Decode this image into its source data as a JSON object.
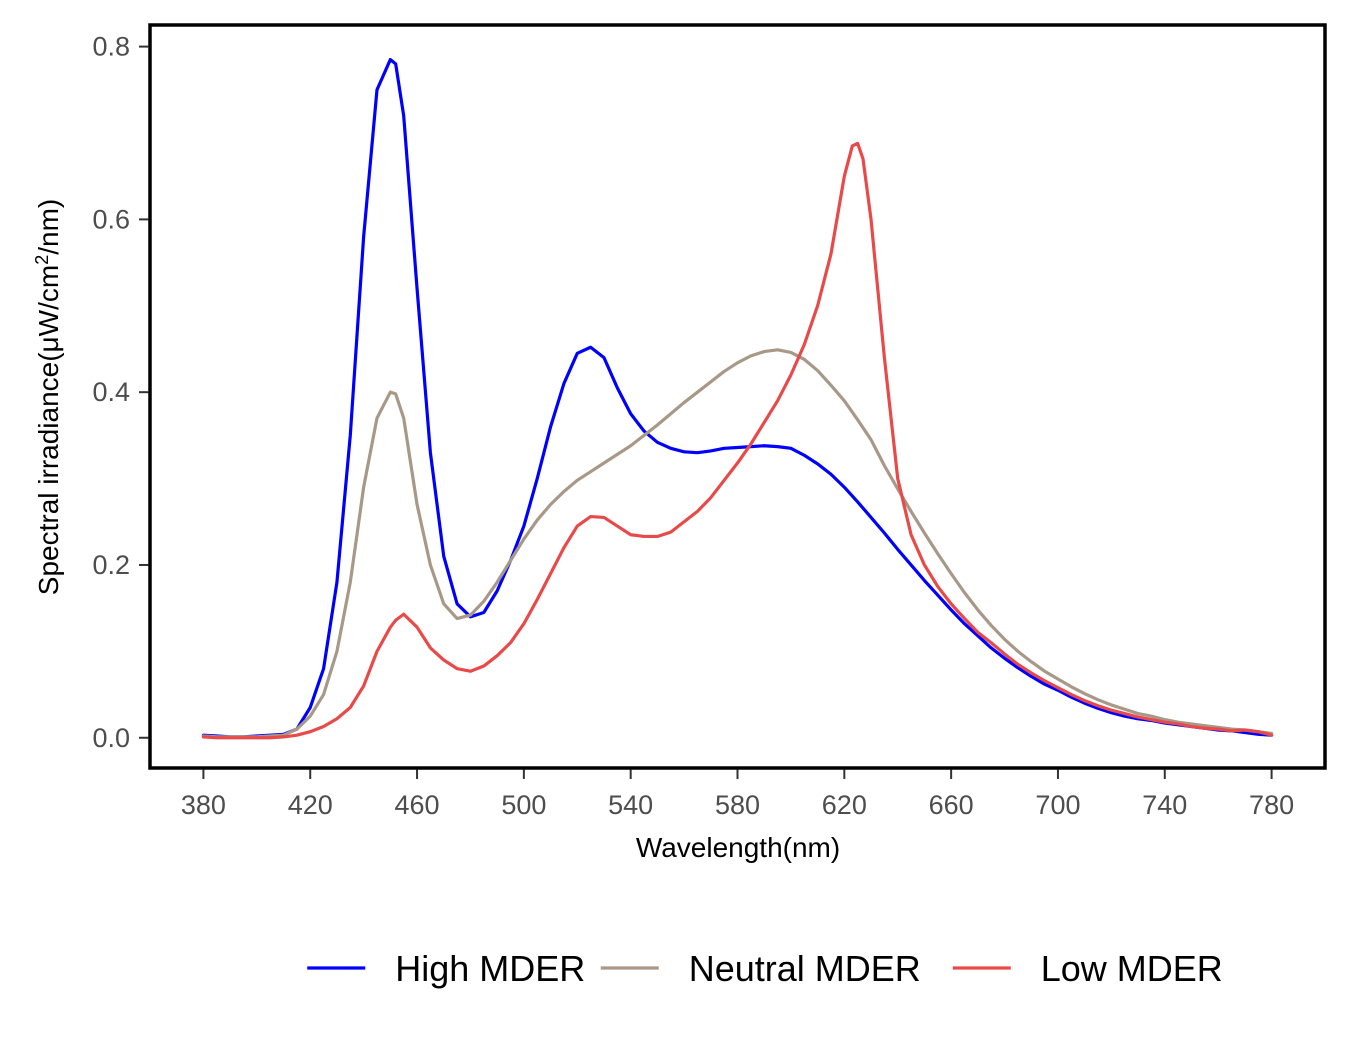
{
  "chart_data": {
    "type": "line",
    "title": "",
    "xlabel": "Wavelength(nm)",
    "ylabel": {
      "prefix": "Spectral irradiance(μW/cm",
      "superscript": "2",
      "suffix": "/nm)"
    },
    "xlim": [
      360,
      800
    ],
    "ylim": [
      -0.035,
      0.825
    ],
    "x_ticks": [
      380,
      420,
      460,
      500,
      540,
      580,
      620,
      660,
      700,
      740,
      780
    ],
    "y_ticks": [
      {
        "value": 0.0,
        "label": "0.0"
      },
      {
        "value": 0.2,
        "label": "0.2"
      },
      {
        "value": 0.4,
        "label": "0.4"
      },
      {
        "value": 0.6,
        "label": "0.6"
      },
      {
        "value": 0.8,
        "label": "0.8"
      }
    ],
    "grid": false,
    "legend_position": "bottom",
    "series": [
      {
        "name": "High MDER",
        "color": "#0000FF",
        "x": [
          380,
          385,
          390,
          395,
          400,
          405,
          410,
          415,
          420,
          425,
          430,
          435,
          440,
          445,
          450,
          452,
          455,
          460,
          465,
          470,
          475,
          480,
          485,
          490,
          495,
          500,
          505,
          510,
          515,
          520,
          525,
          530,
          535,
          540,
          545,
          550,
          555,
          560,
          565,
          570,
          575,
          580,
          585,
          590,
          595,
          600,
          605,
          610,
          615,
          620,
          625,
          630,
          635,
          640,
          645,
          650,
          655,
          660,
          665,
          670,
          675,
          680,
          685,
          690,
          695,
          700,
          705,
          710,
          715,
          720,
          725,
          730,
          735,
          740,
          745,
          750,
          755,
          760,
          765,
          770,
          775,
          780
        ],
        "values": [
          0.003,
          0.002,
          0.001,
          0.001,
          0.002,
          0.003,
          0.004,
          0.01,
          0.035,
          0.08,
          0.18,
          0.35,
          0.58,
          0.75,
          0.785,
          0.78,
          0.72,
          0.52,
          0.33,
          0.21,
          0.155,
          0.14,
          0.145,
          0.17,
          0.205,
          0.245,
          0.3,
          0.36,
          0.41,
          0.445,
          0.452,
          0.44,
          0.405,
          0.375,
          0.355,
          0.342,
          0.335,
          0.331,
          0.33,
          0.332,
          0.335,
          0.336,
          0.337,
          0.338,
          0.337,
          0.335,
          0.327,
          0.317,
          0.305,
          0.29,
          0.273,
          0.255,
          0.237,
          0.218,
          0.2,
          0.182,
          0.165,
          0.148,
          0.132,
          0.118,
          0.104,
          0.092,
          0.081,
          0.071,
          0.062,
          0.055,
          0.047,
          0.04,
          0.034,
          0.029,
          0.025,
          0.022,
          0.02,
          0.017,
          0.015,
          0.013,
          0.011,
          0.009,
          0.008,
          0.006,
          0.004,
          0.003
        ]
      },
      {
        "name": "Neutral MDER",
        "color": "#A89888",
        "x": [
          380,
          385,
          390,
          395,
          400,
          405,
          410,
          415,
          420,
          425,
          430,
          435,
          440,
          445,
          450,
          452,
          455,
          460,
          465,
          470,
          475,
          480,
          485,
          490,
          495,
          500,
          505,
          510,
          515,
          520,
          525,
          530,
          535,
          540,
          545,
          550,
          555,
          560,
          565,
          570,
          575,
          580,
          585,
          590,
          595,
          600,
          605,
          610,
          615,
          620,
          625,
          630,
          635,
          640,
          645,
          650,
          655,
          660,
          665,
          670,
          675,
          680,
          685,
          690,
          695,
          700,
          705,
          710,
          715,
          720,
          725,
          730,
          735,
          740,
          745,
          750,
          755,
          760,
          765,
          770,
          775,
          780
        ],
        "values": [
          0.002,
          0.001,
          0.001,
          0.001,
          0.001,
          0.002,
          0.003,
          0.01,
          0.025,
          0.05,
          0.1,
          0.18,
          0.29,
          0.37,
          0.4,
          0.398,
          0.37,
          0.27,
          0.2,
          0.155,
          0.138,
          0.142,
          0.158,
          0.18,
          0.205,
          0.23,
          0.252,
          0.27,
          0.285,
          0.298,
          0.308,
          0.318,
          0.328,
          0.338,
          0.35,
          0.362,
          0.375,
          0.388,
          0.4,
          0.412,
          0.424,
          0.434,
          0.442,
          0.447,
          0.449,
          0.446,
          0.438,
          0.425,
          0.408,
          0.39,
          0.368,
          0.345,
          0.315,
          0.288,
          0.262,
          0.237,
          0.213,
          0.19,
          0.168,
          0.148,
          0.13,
          0.114,
          0.1,
          0.088,
          0.077,
          0.068,
          0.059,
          0.051,
          0.044,
          0.038,
          0.033,
          0.028,
          0.025,
          0.021,
          0.018,
          0.016,
          0.014,
          0.012,
          0.01,
          0.009,
          0.007,
          0.005
        ]
      },
      {
        "name": "Low MDER",
        "color": "#E84A4A",
        "x": [
          380,
          385,
          390,
          395,
          400,
          405,
          410,
          415,
          420,
          425,
          430,
          435,
          440,
          445,
          450,
          452,
          455,
          460,
          465,
          470,
          475,
          480,
          485,
          490,
          495,
          500,
          505,
          510,
          515,
          520,
          525,
          530,
          535,
          540,
          545,
          550,
          555,
          560,
          565,
          570,
          575,
          580,
          585,
          590,
          595,
          600,
          605,
          610,
          615,
          620,
          623,
          625,
          627,
          630,
          635,
          640,
          645,
          650,
          655,
          660,
          665,
          670,
          675,
          680,
          685,
          690,
          695,
          700,
          705,
          710,
          715,
          720,
          725,
          730,
          735,
          740,
          745,
          750,
          755,
          760,
          765,
          770,
          775,
          780
        ],
        "values": [
          0.001,
          0.0,
          0.0,
          0.0,
          0.0,
          0.0,
          0.001,
          0.003,
          0.007,
          0.013,
          0.022,
          0.035,
          0.06,
          0.1,
          0.128,
          0.136,
          0.143,
          0.128,
          0.104,
          0.09,
          0.08,
          0.077,
          0.083,
          0.095,
          0.11,
          0.132,
          0.16,
          0.19,
          0.22,
          0.245,
          0.256,
          0.255,
          0.245,
          0.235,
          0.233,
          0.233,
          0.238,
          0.25,
          0.262,
          0.278,
          0.298,
          0.318,
          0.34,
          0.365,
          0.39,
          0.42,
          0.455,
          0.5,
          0.56,
          0.65,
          0.685,
          0.688,
          0.67,
          0.6,
          0.44,
          0.3,
          0.235,
          0.2,
          0.175,
          0.155,
          0.138,
          0.122,
          0.11,
          0.097,
          0.085,
          0.075,
          0.066,
          0.058,
          0.05,
          0.043,
          0.037,
          0.032,
          0.028,
          0.024,
          0.021,
          0.018,
          0.016,
          0.013,
          0.011,
          0.01,
          0.008,
          0.009,
          0.007,
          0.003
        ]
      }
    ]
  }
}
